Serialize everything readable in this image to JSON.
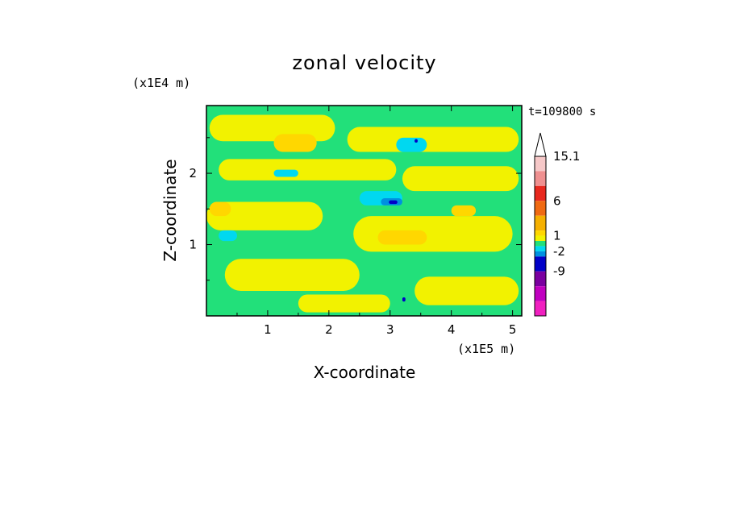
{
  "chart_data": {
    "type": "heatmap",
    "title": "zonal velocity",
    "xlabel": "X-coordinate",
    "ylabel": "Z-coordinate",
    "x_unit": "(x1E5 m)",
    "y_unit": "(x1E4 m)",
    "time_label": "t=109800 s",
    "xlim": [
      0,
      5.15
    ],
    "ylim": [
      0,
      2.95
    ],
    "x_ticks": [
      1,
      2,
      3,
      4,
      5
    ],
    "y_ticks": [
      1,
      2
    ],
    "colorbar": {
      "label_values": [
        "15.1",
        "6",
        "1",
        "-2",
        "-9"
      ],
      "levels_top_to_bottom": [
        {
          "level": "above",
          "color": "#ffffff"
        },
        {
          "level": "15.1",
          "color": "#f6c8c8"
        },
        {
          "level": "12",
          "color": "#ef9090"
        },
        {
          "level": "9",
          "color": "#e8281e"
        },
        {
          "level": "6",
          "color": "#f06a12"
        },
        {
          "level": "3",
          "color": "#f5b000"
        },
        {
          "level": "2",
          "color": "#ffd700"
        },
        {
          "level": "1",
          "color": "#f2f200"
        },
        {
          "level": "0",
          "color": "#22e07a"
        },
        {
          "level": "-1",
          "color": "#00d8f0"
        },
        {
          "level": "-2",
          "color": "#0090e0"
        },
        {
          "level": "-5",
          "color": "#0000c8"
        },
        {
          "level": "-9",
          "color": "#7a00a0"
        },
        {
          "level": "-12",
          "color": "#c000c0"
        },
        {
          "level": "-15",
          "color": "#f020c0"
        }
      ]
    },
    "field_regions": [
      {
        "value": "0",
        "color": "#22e07a",
        "x": [
          0,
          5.15
        ],
        "z": [
          0,
          2.95
        ]
      },
      {
        "value": "1",
        "color": "#f2f200",
        "x": [
          0.05,
          2.1
        ],
        "z": [
          2.45,
          2.82
        ]
      },
      {
        "value": "1",
        "color": "#f2f200",
        "x": [
          2.3,
          5.1
        ],
        "z": [
          2.3,
          2.65
        ]
      },
      {
        "value": "1",
        "color": "#f2f200",
        "x": [
          0.2,
          3.1
        ],
        "z": [
          1.9,
          2.2
        ]
      },
      {
        "value": "1",
        "color": "#f2f200",
        "x": [
          3.2,
          5.1
        ],
        "z": [
          1.75,
          2.1
        ]
      },
      {
        "value": "1",
        "color": "#f2f200",
        "x": [
          0.0,
          1.9
        ],
        "z": [
          1.2,
          1.6
        ]
      },
      {
        "value": "1",
        "color": "#f2f200",
        "x": [
          2.4,
          5.0
        ],
        "z": [
          0.9,
          1.4
        ]
      },
      {
        "value": "1",
        "color": "#f2f200",
        "x": [
          0.3,
          2.5
        ],
        "z": [
          0.35,
          0.8
        ]
      },
      {
        "value": "1",
        "color": "#f2f200",
        "x": [
          3.4,
          5.1
        ],
        "z": [
          0.15,
          0.55
        ]
      },
      {
        "value": "1",
        "color": "#f2f200",
        "x": [
          1.5,
          3.0
        ],
        "z": [
          0.05,
          0.3
        ]
      },
      {
        "value": "2",
        "color": "#ffd700",
        "x": [
          1.1,
          1.8
        ],
        "z": [
          2.3,
          2.55
        ]
      },
      {
        "value": "2",
        "color": "#ffd700",
        "x": [
          2.8,
          3.6
        ],
        "z": [
          1.0,
          1.2
        ]
      },
      {
        "value": "2",
        "color": "#ffd700",
        "x": [
          0.05,
          0.4
        ],
        "z": [
          1.4,
          1.6
        ]
      },
      {
        "value": "2",
        "color": "#ffd700",
        "x": [
          4.0,
          4.4
        ],
        "z": [
          1.4,
          1.55
        ]
      },
      {
        "value": "-1",
        "color": "#00d8f0",
        "x": [
          2.5,
          3.2
        ],
        "z": [
          1.55,
          1.75
        ]
      },
      {
        "value": "-1",
        "color": "#00d8f0",
        "x": [
          3.1,
          3.6
        ],
        "z": [
          2.3,
          2.5
        ]
      },
      {
        "value": "-1",
        "color": "#00d8f0",
        "x": [
          1.1,
          1.5
        ],
        "z": [
          1.95,
          2.05
        ]
      },
      {
        "value": "-1",
        "color": "#00d8f0",
        "x": [
          0.2,
          0.5
        ],
        "z": [
          1.05,
          1.2
        ]
      },
      {
        "value": "-2",
        "color": "#0090e0",
        "x": [
          2.85,
          3.2
        ],
        "z": [
          1.55,
          1.65
        ]
      },
      {
        "value": "-5",
        "color": "#0000c8",
        "x": [
          2.98,
          3.12
        ],
        "z": [
          1.57,
          1.62
        ]
      },
      {
        "value": "-5",
        "color": "#0000c8",
        "x": [
          3.4,
          3.45
        ],
        "z": [
          2.43,
          2.48
        ]
      },
      {
        "value": "-5",
        "color": "#0000c8",
        "x": [
          3.2,
          3.25
        ],
        "z": [
          0.2,
          0.26
        ]
      }
    ]
  }
}
